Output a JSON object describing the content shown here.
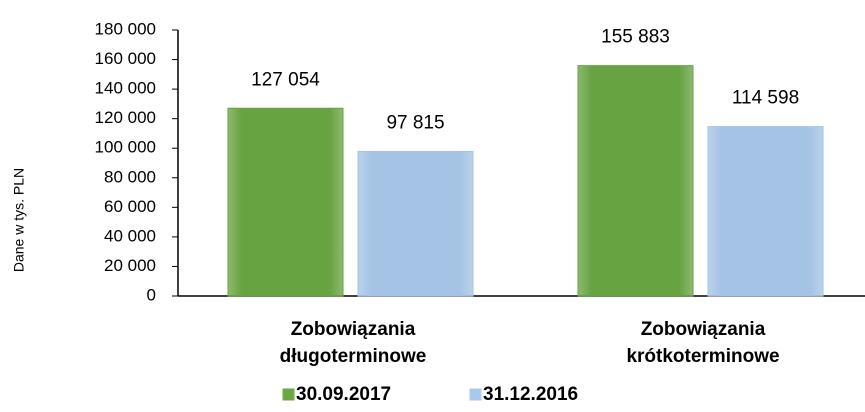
{
  "chart_data": {
    "type": "bar",
    "y_label": "Dane w tys. PLN",
    "categories": [
      "Zobowiązania długoterminowe",
      "Zobowiązania krótkoterminowe"
    ],
    "series": [
      {
        "name": "30.09.2017",
        "color": "#6aa843",
        "values": [
          127054,
          155883
        ],
        "value_labels": [
          "127 054",
          "155 883"
        ]
      },
      {
        "name": "31.12.2016",
        "color": "#a9c9ec",
        "values": [
          97815,
          114598
        ],
        "value_labels": [
          "97 815",
          "114 598"
        ]
      }
    ],
    "ylim": [
      0,
      180000
    ],
    "yticks": [
      0,
      {
        "value": 20000,
        "label": "20 000"
      },
      {
        "value": 40000,
        "label": "40 000"
      },
      {
        "value": 60000,
        "label": "60 000"
      },
      {
        "value": 80000,
        "label": "80 000"
      },
      {
        "value": 100000,
        "label": "100 000"
      },
      {
        "value": 120000,
        "label": "120 000"
      },
      {
        "value": 140000,
        "label": "140 000"
      },
      {
        "value": 160000,
        "label": "160 000"
      },
      {
        "value": 180000,
        "label": "180 000"
      }
    ],
    "grid": false,
    "legend": "bottom"
  }
}
